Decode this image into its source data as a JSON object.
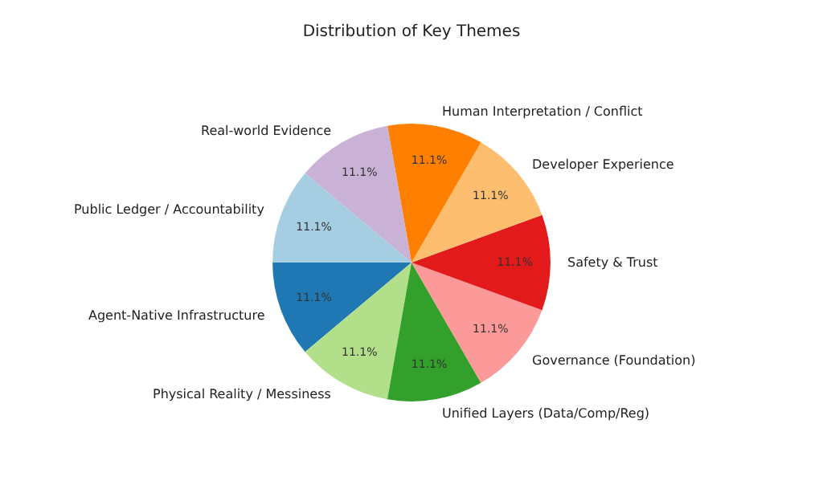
{
  "chart_data": {
    "type": "pie",
    "title": "Distribution of Key Themes",
    "categories": [
      "Agent-Native Infrastructure",
      "Physical Reality / Messiness",
      "Unified Layers (Data/Comp/Reg)",
      "Governance (Foundation)",
      "Safety & Trust",
      "Developer Experience",
      "Human Interpretation / Conflict",
      "Real-world Evidence",
      "Public Ledger / Accountability"
    ],
    "values": [
      11.1,
      11.1,
      11.1,
      11.1,
      11.1,
      11.1,
      11.1,
      11.1,
      11.1
    ],
    "value_labels": [
      "11.1%",
      "11.1%",
      "11.1%",
      "11.1%",
      "11.1%",
      "11.1%",
      "11.1%",
      "11.1%",
      "11.1%"
    ],
    "colors": [
      "#1f78b4",
      "#b2df8a",
      "#33a02c",
      "#fb9a99",
      "#e31a1c",
      "#fdbf6f",
      "#ff7f00",
      "#cab2d6",
      "#a6cee3"
    ],
    "legend": false
  }
}
